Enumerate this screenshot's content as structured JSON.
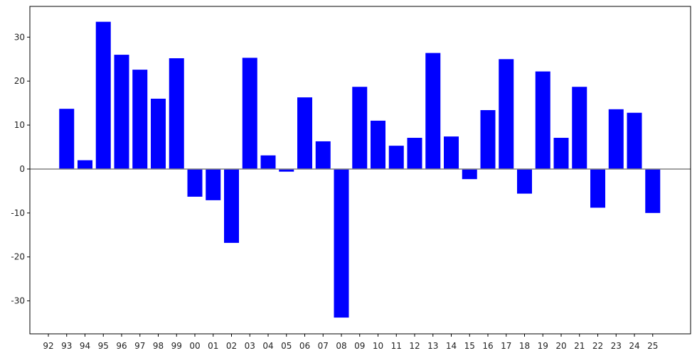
{
  "chart_data": {
    "type": "bar",
    "title": "",
    "xlabel": "",
    "ylabel": "",
    "categories": [
      "92",
      "93",
      "94",
      "95",
      "96",
      "97",
      "98",
      "99",
      "00",
      "01",
      "02",
      "03",
      "04",
      "05",
      "06",
      "07",
      "08",
      "09",
      "10",
      "11",
      "12",
      "13",
      "14",
      "15",
      "16",
      "17",
      "18",
      "19",
      "20",
      "21",
      "22",
      "23",
      "24",
      "25"
    ],
    "values": [
      0,
      13.7,
      2.0,
      33.5,
      26.0,
      22.6,
      16.0,
      25.2,
      -6.3,
      -7.1,
      -16.8,
      25.3,
      3.1,
      -0.6,
      16.3,
      6.3,
      -33.8,
      18.7,
      11.0,
      5.3,
      7.1,
      26.4,
      7.4,
      -2.3,
      13.4,
      25.0,
      -5.6,
      22.2,
      7.1,
      18.7,
      -8.8,
      13.6,
      12.8,
      -10.0
    ],
    "yticks": [
      -30,
      -20,
      -10,
      0,
      10,
      20,
      30
    ],
    "ylim": [
      -37.5,
      37.0
    ],
    "bar_color": "#0000ff",
    "zero_line_color": "#808080",
    "grid": false,
    "legend": "none"
  }
}
